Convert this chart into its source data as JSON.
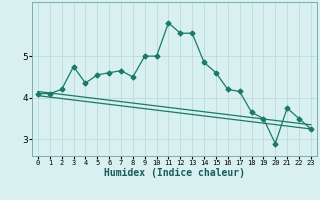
{
  "xlabel": "Humidex (Indice chaleur)",
  "bg_color": "#d8f0f0",
  "grid_color": "#c0dede",
  "line_color": "#1a7a6a",
  "xlim": [
    -0.5,
    23.5
  ],
  "ylim": [
    2.6,
    6.3
  ],
  "yticks": [
    3,
    4,
    5
  ],
  "xticks": [
    0,
    1,
    2,
    3,
    4,
    5,
    6,
    7,
    8,
    9,
    10,
    11,
    12,
    13,
    14,
    15,
    16,
    17,
    18,
    19,
    20,
    21,
    22,
    23
  ],
  "series1_x": [
    0,
    1,
    2,
    3,
    4,
    5,
    6,
    7,
    8,
    9,
    10,
    11,
    12,
    13,
    14,
    15,
    16,
    17,
    18,
    19,
    20,
    21,
    22,
    23
  ],
  "series1_y": [
    4.1,
    4.1,
    4.2,
    4.75,
    4.35,
    4.55,
    4.6,
    4.65,
    4.5,
    5.0,
    5.0,
    5.8,
    5.55,
    5.55,
    4.85,
    4.6,
    4.2,
    4.15,
    3.65,
    3.5,
    2.9,
    3.75,
    3.5,
    3.25
  ],
  "series2_x": [
    0,
    23
  ],
  "series2_y": [
    4.15,
    3.35
  ],
  "series3_x": [
    0,
    23
  ],
  "series3_y": [
    4.05,
    3.25
  ]
}
